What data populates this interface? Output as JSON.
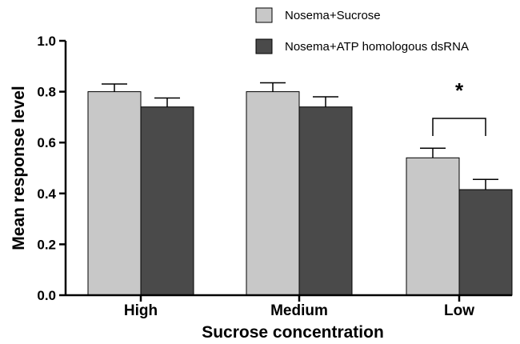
{
  "chart_data": {
    "type": "bar",
    "categories": [
      "High",
      "Medium",
      "Low"
    ],
    "series": [
      {
        "name": "Nosema+Sucrose",
        "values": [
          0.8,
          0.8,
          0.54
        ],
        "errors": [
          0.03,
          0.035,
          0.038
        ],
        "color": "#c8c8c8"
      },
      {
        "name": "Nosema+ATP homologous dsRNA",
        "values": [
          0.74,
          0.74,
          0.415
        ],
        "errors": [
          0.035,
          0.04,
          0.04
        ],
        "color": "#4a4a4a"
      }
    ],
    "xlabel": "Sucrose concentration",
    "ylabel": "Mean response level",
    "ylim": [
      0,
      1.0
    ],
    "yticks": [
      0.0,
      0.2,
      0.4,
      0.6,
      0.8,
      1.0
    ],
    "ytick_labels": [
      "0.0",
      "0.2",
      "0.4",
      "0.6",
      "0.8",
      "1.0"
    ],
    "grid": false,
    "legend_position": "top-right",
    "annotation": {
      "text": "*",
      "category": "Low"
    }
  }
}
